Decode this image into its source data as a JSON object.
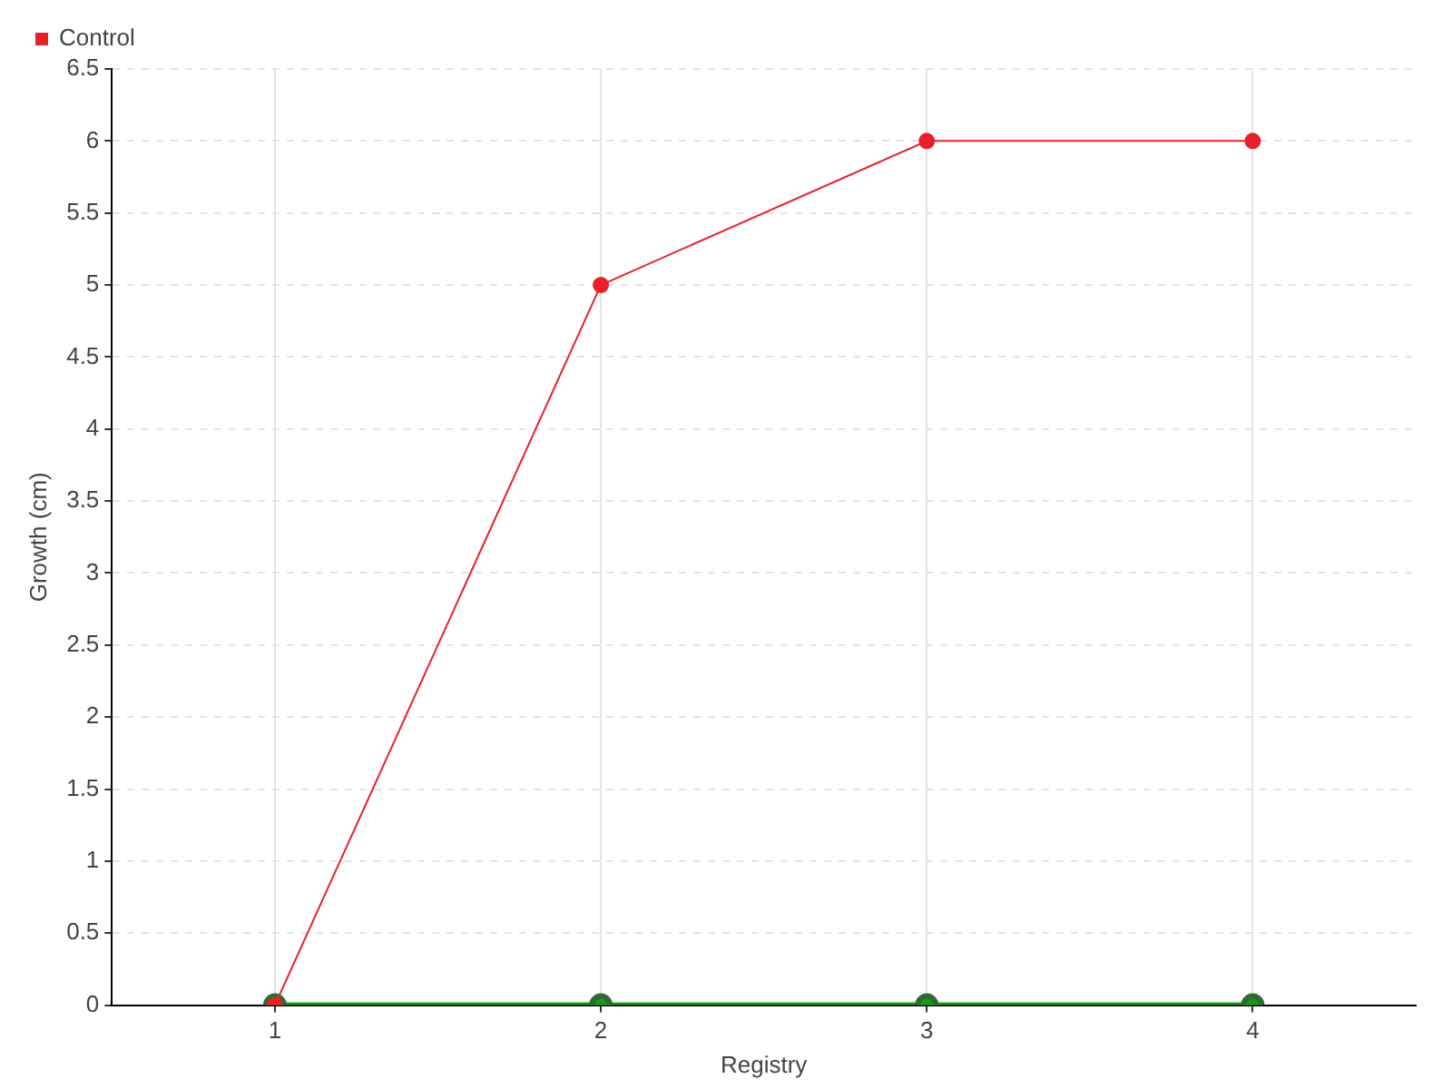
{
  "chart_data": {
    "type": "line",
    "xlabel": "Registry",
    "ylabel": "Growth (cm)",
    "categories": [
      "1",
      "2",
      "3",
      "4"
    ],
    "series": [
      {
        "color": "#1a9a1a",
        "values": [
          0,
          0,
          0,
          0
        ]
      },
      {
        "name": "Control",
        "color": "#e8202a",
        "values": [
          0,
          5,
          6,
          6
        ]
      }
    ],
    "ylim": [
      0,
      6.5
    ],
    "yticks": [
      0,
      0.5,
      1,
      1.5,
      2,
      2.5,
      3,
      3.5,
      4,
      4.5,
      5,
      5.5,
      6,
      6.5
    ],
    "grid": true,
    "legend": "top left",
    "marker": "circle",
    "line_style": "solid"
  }
}
